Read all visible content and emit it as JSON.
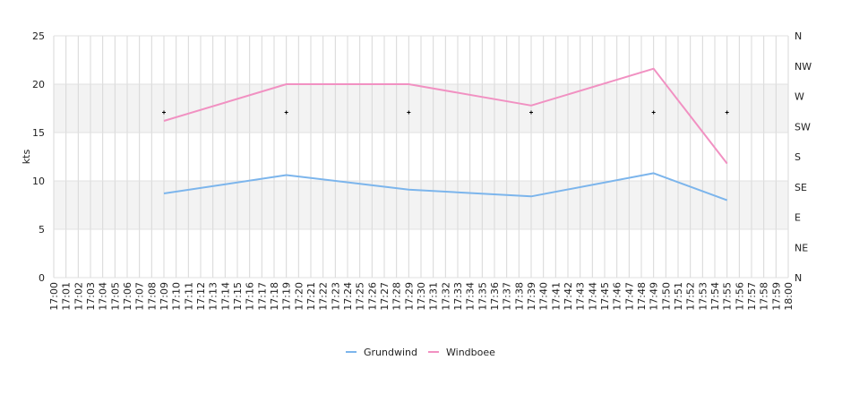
{
  "chart_data": {
    "type": "line",
    "ylabel": "kts",
    "ylim": [
      0,
      25
    ],
    "y_ticks": [
      "0",
      "5",
      "10",
      "15",
      "20",
      "25"
    ],
    "y2_ticks": [
      "N",
      "NE",
      "E",
      "SE",
      "S",
      "SW",
      "W",
      "NW",
      "N"
    ],
    "x_start": "17:00",
    "x_end": "18:00",
    "x_ticks": [
      "17:00",
      "17:01",
      "17:02",
      "17:03",
      "17:04",
      "17:05",
      "17:06",
      "17:07",
      "17:08",
      "17:09",
      "17:10",
      "17:11",
      "17:12",
      "17:13",
      "17:14",
      "17:15",
      "17:16",
      "17:17",
      "17:18",
      "17:19",
      "17:20",
      "17:21",
      "17:22",
      "17:23",
      "17:24",
      "17:25",
      "17:26",
      "17:27",
      "17:28",
      "17:29",
      "17:30",
      "17:31",
      "17:32",
      "17:33",
      "17:34",
      "17:35",
      "17:36",
      "17:37",
      "17:38",
      "17:39",
      "17:40",
      "17:41",
      "17:42",
      "17:43",
      "17:44",
      "17:45",
      "17:46",
      "17:47",
      "17:48",
      "17:49",
      "17:50",
      "17:51",
      "17:52",
      "17:53",
      "17:54",
      "17:55",
      "17:56",
      "17:57",
      "17:58",
      "17:59",
      "18:00"
    ],
    "bands": [
      [
        5,
        10
      ],
      [
        15,
        20
      ]
    ],
    "grid": true,
    "legend_position": "bottom",
    "series": [
      {
        "name": "Grundwind",
        "color": "#7cb5ec",
        "points": [
          [
            "17:09",
            8.7
          ],
          [
            "17:19",
            10.6
          ],
          [
            "17:29",
            9.1
          ],
          [
            "17:39",
            8.4
          ],
          [
            "17:49",
            10.8
          ],
          [
            "17:55",
            8.0
          ]
        ]
      },
      {
        "name": "Windboee",
        "color": "#f191c2",
        "points": [
          [
            "17:09",
            16.2
          ],
          [
            "17:19",
            20.0
          ],
          [
            "17:29",
            20.0
          ],
          [
            "17:39",
            17.8
          ],
          [
            "17:49",
            21.6
          ],
          [
            "17:55",
            11.8
          ]
        ]
      }
    ],
    "direction_markers": {
      "color": "#000000",
      "points": [
        [
          "17:09",
          "W"
        ],
        [
          "17:19",
          "W"
        ],
        [
          "17:29",
          "W"
        ],
        [
          "17:39",
          "W"
        ],
        [
          "17:49",
          "W"
        ],
        [
          "17:55",
          "W"
        ]
      ]
    }
  }
}
